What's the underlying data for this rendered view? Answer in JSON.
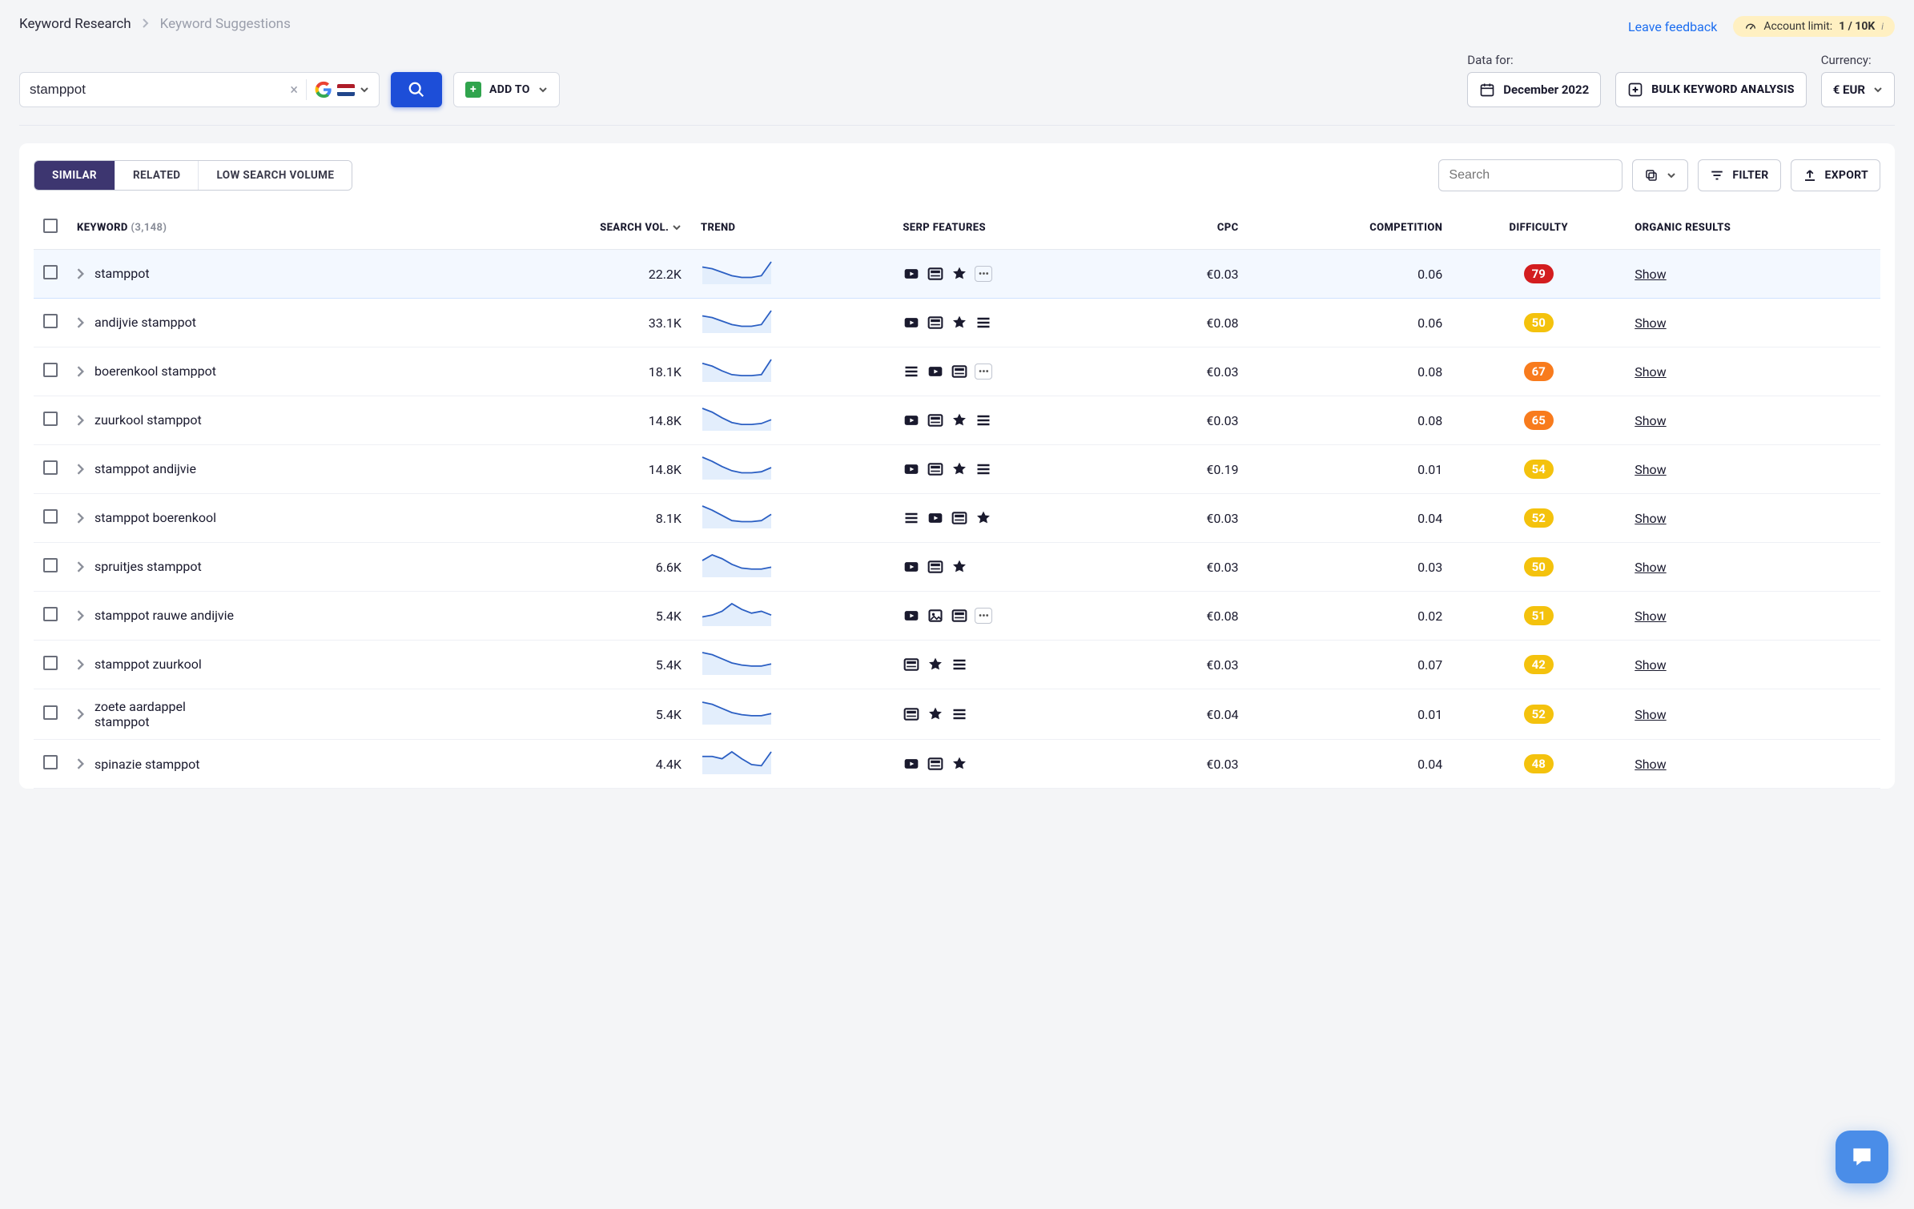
{
  "breadcrumb": {
    "level1": "Keyword Research",
    "level2": "Keyword Suggestions"
  },
  "top": {
    "feedback": "Leave feedback",
    "account_limit_label": "Account limit:",
    "account_limit_value": "1 / 10K"
  },
  "controls": {
    "search_value": "stamppot",
    "addto_label": "ADD TO",
    "data_for_label": "Data for:",
    "date_value": "December 2022",
    "bulk_label": "BULK KEYWORD ANALYSIS",
    "currency_label": "Currency:",
    "currency_value": "€ EUR"
  },
  "tabs": [
    "SIMILAR",
    "RELATED",
    "LOW SEARCH VOLUME"
  ],
  "active_tab": 0,
  "card_actions": {
    "search_placeholder": "Search",
    "filter_label": "FILTER",
    "export_label": "EXPORT"
  },
  "columns": {
    "keyword": "KEYWORD",
    "keyword_count": "(3,148)",
    "volume": "SEARCH VOL.",
    "trend": "TREND",
    "serp": "SERP FEATURES",
    "cpc": "CPC",
    "competition": "COMPETITION",
    "difficulty": "DIFFICULTY",
    "organic": "ORGANIC RESULTS"
  },
  "colors": {
    "diff_red": "#d31d1f",
    "diff_orange": "#f87b1d",
    "diff_yellow": "#f4c20d",
    "trend_stroke": "#2b5fc3",
    "trend_fill": "#e3eefc"
  },
  "show_label": "Show",
  "rows": [
    {
      "keyword": "stamppot",
      "volume": "22.2K",
      "cpc": "€0.03",
      "competition": "0.06",
      "difficulty": 79,
      "diff_color": "diff_red",
      "serp": [
        "video",
        "card",
        "star",
        "more"
      ],
      "trend": [
        18,
        16,
        12,
        8,
        6,
        6,
        8,
        24
      ]
    },
    {
      "keyword": "andijvie stamppot",
      "volume": "33.1K",
      "cpc": "€0.08",
      "competition": "0.06",
      "difficulty": 50,
      "diff_color": "diff_yellow",
      "serp": [
        "video",
        "card",
        "star",
        "lines"
      ],
      "trend": [
        18,
        16,
        12,
        8,
        6,
        6,
        8,
        24
      ]
    },
    {
      "keyword": "boerenkool stamppot",
      "volume": "18.1K",
      "cpc": "€0.03",
      "competition": "0.08",
      "difficulty": 67,
      "diff_color": "diff_orange",
      "serp": [
        "lines",
        "video",
        "card",
        "more"
      ],
      "trend": [
        18,
        15,
        10,
        6,
        5,
        5,
        6,
        22
      ]
    },
    {
      "keyword": "zuurkool stamppot",
      "volume": "14.8K",
      "cpc": "€0.03",
      "competition": "0.08",
      "difficulty": 65,
      "diff_color": "diff_orange",
      "serp": [
        "video",
        "card",
        "star",
        "lines"
      ],
      "trend": [
        22,
        18,
        12,
        7,
        5,
        5,
        6,
        10
      ]
    },
    {
      "keyword": "stamppot andijvie",
      "volume": "14.8K",
      "cpc": "€0.19",
      "competition": "0.01",
      "difficulty": 54,
      "diff_color": "diff_yellow",
      "serp": [
        "video",
        "card",
        "star",
        "lines"
      ],
      "trend": [
        20,
        16,
        11,
        7,
        5,
        5,
        6,
        10
      ]
    },
    {
      "keyword": "stamppot boerenkool",
      "volume": "8.1K",
      "cpc": "€0.03",
      "competition": "0.04",
      "difficulty": 52,
      "diff_color": "diff_yellow",
      "serp": [
        "lines",
        "video",
        "card",
        "star"
      ],
      "trend": [
        20,
        16,
        11,
        6,
        5,
        5,
        6,
        12
      ]
    },
    {
      "keyword": "spruitjes stamppot",
      "volume": "6.6K",
      "cpc": "€0.03",
      "competition": "0.03",
      "difficulty": 50,
      "diff_color": "diff_yellow",
      "serp": [
        "video",
        "card",
        "star"
      ],
      "trend": [
        16,
        22,
        18,
        12,
        8,
        7,
        7,
        9
      ]
    },
    {
      "keyword": "stamppot rauwe andijvie",
      "volume": "5.4K",
      "cpc": "€0.08",
      "competition": "0.02",
      "difficulty": 51,
      "diff_color": "diff_yellow",
      "serp": [
        "video",
        "image",
        "card",
        "more"
      ],
      "trend": [
        8,
        10,
        14,
        22,
        16,
        12,
        14,
        10
      ]
    },
    {
      "keyword": "stamppot zuurkool",
      "volume": "5.4K",
      "cpc": "€0.03",
      "competition": "0.07",
      "difficulty": 42,
      "diff_color": "diff_yellow",
      "serp": [
        "card",
        "star",
        "lines"
      ],
      "trend": [
        20,
        18,
        14,
        10,
        8,
        7,
        7,
        9
      ]
    },
    {
      "keyword": "zoete aardappel stamppot",
      "volume": "5.4K",
      "cpc": "€0.04",
      "competition": "0.01",
      "difficulty": 52,
      "diff_color": "diff_yellow",
      "serp": [
        "card",
        "star",
        "lines"
      ],
      "trend": [
        20,
        18,
        14,
        10,
        8,
        7,
        7,
        9
      ]
    },
    {
      "keyword": "spinazie stamppot",
      "volume": "4.4K",
      "cpc": "€0.03",
      "competition": "0.04",
      "difficulty": 48,
      "diff_color": "diff_yellow",
      "serp": [
        "video",
        "card",
        "star"
      ],
      "trend": [
        14,
        14,
        12,
        18,
        12,
        7,
        6,
        18
      ]
    }
  ]
}
